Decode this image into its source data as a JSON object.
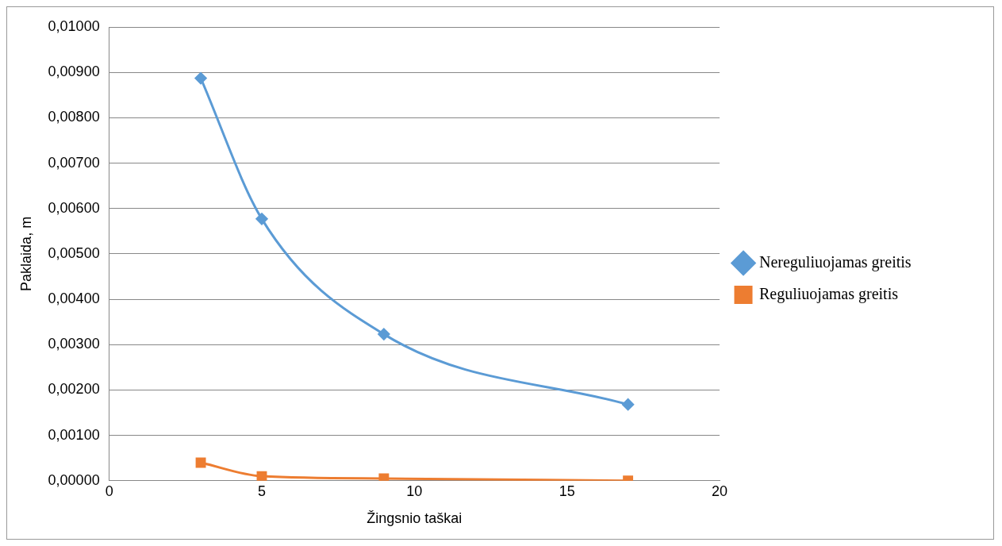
{
  "chart_data": {
    "type": "line",
    "xlabel": "Žingsnio taškai",
    "ylabel": "Paklaida, m",
    "series": [
      {
        "name": "Nereguliuojamas greitis",
        "color": "#5b9bd5",
        "marker": "diamond",
        "x": [
          3,
          5,
          9,
          17
        ],
        "values": [
          0.00887,
          0.00577,
          0.00323,
          0.00168
        ]
      },
      {
        "name": "Reguliuojamas greitis",
        "color": "#ed7d31",
        "marker": "square",
        "x": [
          3,
          5,
          9,
          17
        ],
        "values": [
          0.0004,
          0.0001,
          5e-05,
          0
        ]
      }
    ],
    "xlim": [
      0,
      20
    ],
    "xticks": [
      0,
      5,
      10,
      15,
      20
    ],
    "ylim": [
      0,
      0.01
    ],
    "yticks": [
      {
        "value": 0,
        "label": "0,00000"
      },
      {
        "value": 0.001,
        "label": "0,00100"
      },
      {
        "value": 0.002,
        "label": "0,00200"
      },
      {
        "value": 0.003,
        "label": "0,00300"
      },
      {
        "value": 0.004,
        "label": "0,00400"
      },
      {
        "value": 0.005,
        "label": "0,00500"
      },
      {
        "value": 0.006,
        "label": "0,00600"
      },
      {
        "value": 0.007,
        "label": "0,00700"
      },
      {
        "value": 0.008,
        "label": "0,00800"
      },
      {
        "value": 0.009,
        "label": "0,00900"
      },
      {
        "value": 0.01,
        "label": "0,01000"
      }
    ],
    "grid": "y",
    "legend": "right",
    "line_style": "solid"
  }
}
